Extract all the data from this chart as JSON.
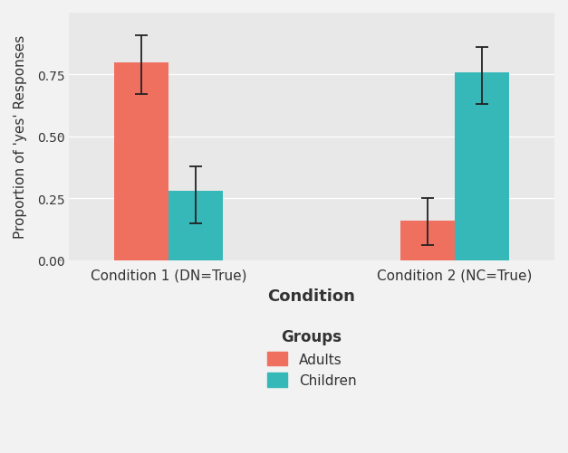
{
  "conditions": [
    "Condition 1 (DN=True)",
    "Condition 2 (NC=True)"
  ],
  "groups": [
    "Adults",
    "Children"
  ],
  "values": {
    "Adults": [
      0.8,
      0.16
    ],
    "Children": [
      0.28,
      0.76
    ]
  },
  "errors_upper": {
    "Adults": [
      0.11,
      0.09
    ],
    "Children": [
      0.1,
      0.1
    ]
  },
  "errors_lower": {
    "Adults": [
      0.13,
      0.1
    ],
    "Children": [
      0.13,
      0.13
    ]
  },
  "colors": {
    "Adults": "#F07060",
    "Children": "#36B8B8"
  },
  "ylabel": "Proportion of 'yes' Responses",
  "xlabel": "Condition",
  "legend_title": "Groups",
  "ylim": [
    0.0,
    1.0
  ],
  "yticks": [
    0.0,
    0.25,
    0.5,
    0.75
  ],
  "ytick_labels": [
    "0.00",
    "0.25",
    "0.50",
    "0.75"
  ],
  "background_color": "#E8E8E8",
  "outer_color": "#F2F2F2",
  "bar_width": 0.38,
  "group_positions": [
    1.0,
    3.0
  ]
}
